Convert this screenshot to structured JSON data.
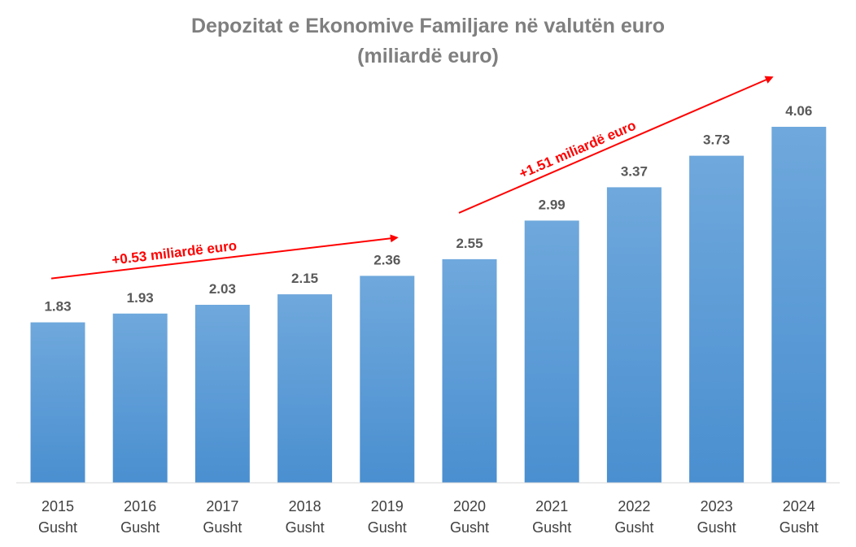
{
  "chart_data": {
    "type": "bar",
    "title": "Depozitat e Ekonomive Familjare në valutën euro",
    "subtitle": "(miliardë euro)",
    "categories": [
      [
        "2015",
        "Gusht"
      ],
      [
        "2016",
        "Gusht"
      ],
      [
        "2017",
        "Gusht"
      ],
      [
        "2018",
        "Gusht"
      ],
      [
        "2019",
        "Gusht"
      ],
      [
        "2020",
        "Gusht"
      ],
      [
        "2021",
        "Gusht"
      ],
      [
        "2022",
        "Gusht"
      ],
      [
        "2023",
        "Gusht"
      ],
      [
        "2024",
        "Gusht"
      ]
    ],
    "values": [
      1.83,
      1.93,
      2.03,
      2.15,
      2.36,
      2.55,
      2.99,
      3.37,
      3.73,
      4.06
    ],
    "ylim": [
      0,
      4.06
    ],
    "grid": false,
    "legend": "none",
    "colors": {
      "bar_top": "#6fa8dc",
      "bar_bottom": "#4a8fd0",
      "annotation": "#ff0000",
      "title": "#7f7f7f"
    },
    "annotations": [
      {
        "text": "+0.53 miliardë euro",
        "from_category": "2015",
        "to_category": "2019"
      },
      {
        "text": "+1.51 miliardë euro",
        "from_category": "2020",
        "to_category": "2024"
      }
    ]
  }
}
